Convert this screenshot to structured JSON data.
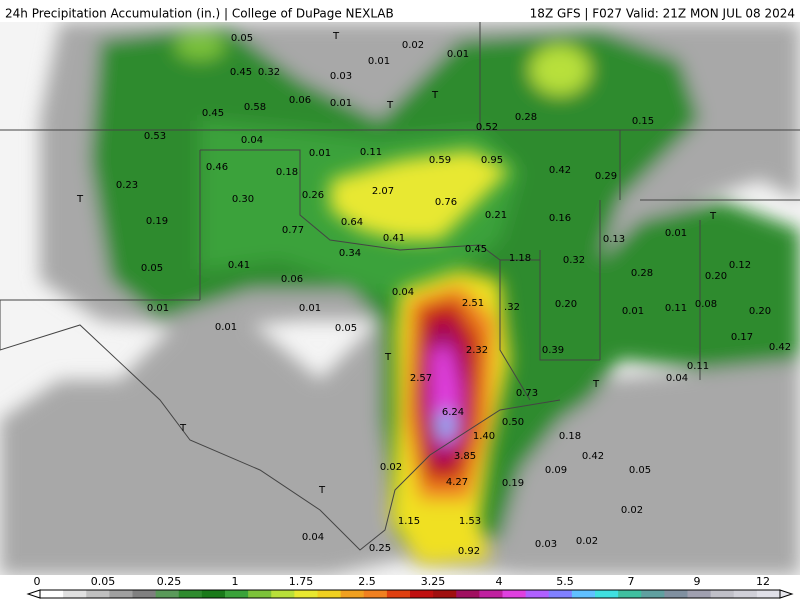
{
  "header": {
    "title": "24h Precipitation Accumulation (in.) | College of DuPage NEXLAB",
    "run": "18Z GFS | F027 Valid: 21Z MON JUL 08 2024"
  },
  "labels": [
    "0.05",
    "T",
    "0.02",
    "0.01",
    "0.01",
    "0.45",
    "0.32",
    "0.03",
    "0.06",
    "0.01",
    "T",
    "T",
    "0.58",
    "0.45",
    "0.28",
    "0.52",
    "0.53",
    "0.04",
    "0.15",
    "0.01",
    "0.11",
    "0.59",
    "0.95",
    "0.46",
    "0.18",
    "0.42",
    "0.29",
    "0.23",
    "T",
    "2.07",
    "0.26",
    "0.30",
    "0.76",
    "0.21",
    "0.16",
    "0.19",
    "0.64",
    "0.77",
    "0.41",
    "0.13",
    "0.01",
    "T",
    "0.45",
    "0.34",
    "1.18",
    "0.32",
    "0.28",
    "0.20",
    "0.12",
    "0.05",
    "0.41",
    "0.06",
    "0.04",
    "2.51",
    ".32",
    "0.20",
    "0.01",
    "0.01",
    "0.01",
    "0.11",
    "0.08",
    "0.20",
    "0.01",
    "0.05",
    "2.32",
    "0.39",
    "0.17",
    "0.42",
    "T",
    "2.57",
    "0.11",
    "0.04",
    "T",
    "0.73",
    "6.24",
    "0.50",
    "1.40",
    "0.18",
    "T",
    "3.85",
    "0.42",
    "0.02",
    "0.09",
    "0.05",
    "4.27",
    "0.19",
    "T",
    "0.02",
    "1.15",
    "1.53",
    "0.04",
    "0.03",
    "0.02",
    "0.25",
    "0.92"
  ],
  "colorbar": {
    "ticks": [
      "0",
      "0.05",
      "0.25",
      "1",
      "1.75",
      "2.5",
      "3.25",
      "4",
      "5.5",
      "7",
      "9",
      "12"
    ]
  }
}
